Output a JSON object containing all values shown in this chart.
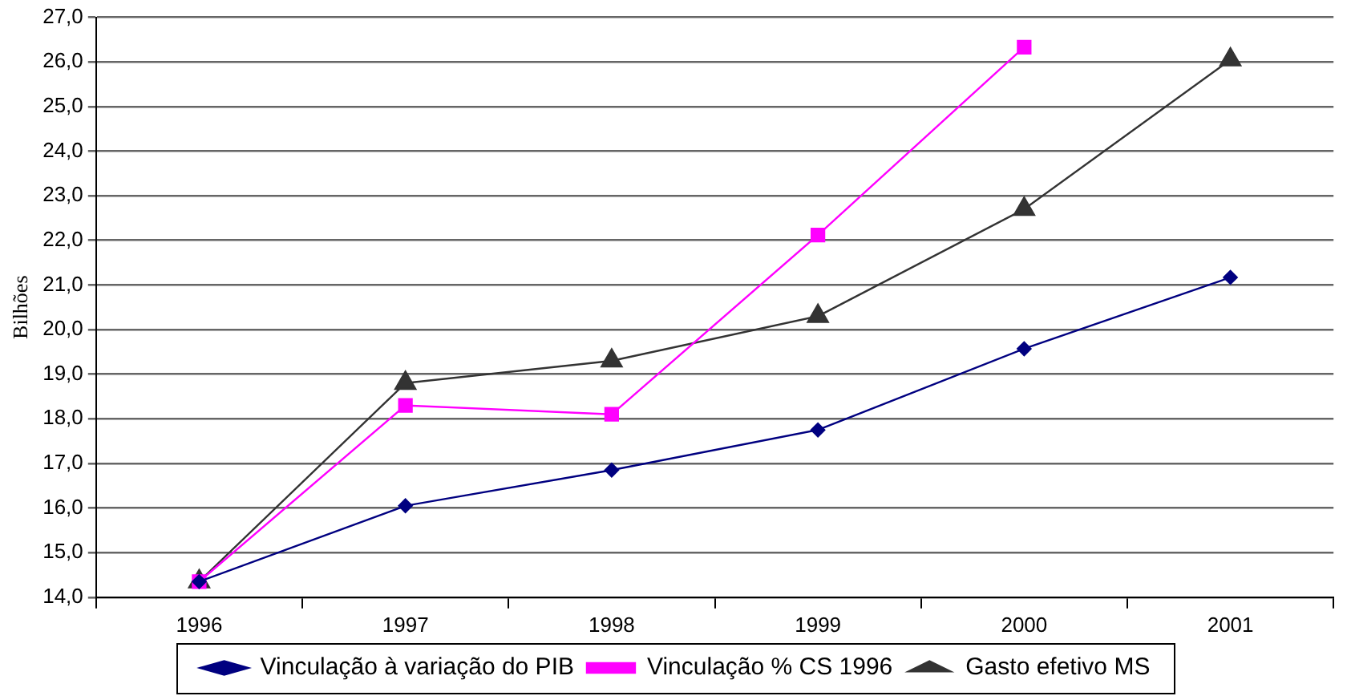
{
  "chart_data": {
    "type": "line",
    "ylabel": "Bilhões",
    "categories": [
      "1996",
      "1997",
      "1998",
      "1999",
      "2000",
      "2001"
    ],
    "series": [
      {
        "name": "Vinculação à variação do PIB",
        "color": "#000080",
        "marker": "diamond",
        "values": [
          14.35,
          16.05,
          16.85,
          17.75,
          19.57,
          21.17
        ]
      },
      {
        "name": "Vinculação % CS 1996",
        "color": "#ff00ff",
        "marker": "square",
        "values": [
          14.35,
          18.3,
          18.1,
          22.12,
          26.33,
          null
        ]
      },
      {
        "name": "Gasto efetivo MS",
        "color": "#333333",
        "marker": "triangle",
        "values": [
          14.35,
          18.8,
          19.3,
          20.3,
          22.7,
          26.05
        ]
      }
    ],
    "ylim": [
      14,
      27
    ],
    "yticks": [
      {
        "value": 14,
        "label": "14,0"
      },
      {
        "value": 15,
        "label": "15,0"
      },
      {
        "value": 16,
        "label": "16,0"
      },
      {
        "value": 17,
        "label": "17,0"
      },
      {
        "value": 18,
        "label": "18,0"
      },
      {
        "value": 19,
        "label": "19,0"
      },
      {
        "value": 20,
        "label": "20,0"
      },
      {
        "value": 21,
        "label": "21,0"
      },
      {
        "value": 22,
        "label": "22,0"
      },
      {
        "value": 23,
        "label": "23,0"
      },
      {
        "value": 24,
        "label": "24,0"
      },
      {
        "value": 25,
        "label": "25,0"
      },
      {
        "value": 26,
        "label": "26,0"
      },
      {
        "value": 27,
        "label": "27,0"
      }
    ],
    "grid": "y",
    "legend": "bottom",
    "line_style": "solid"
  }
}
